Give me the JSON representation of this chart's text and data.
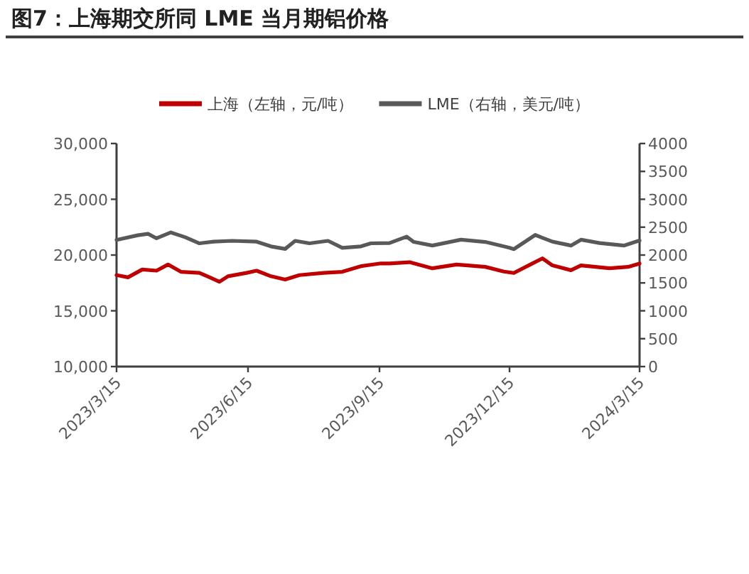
{
  "chart_data": {
    "type": "line",
    "title": "图7：上海期交所同 LME 当月期铝价格",
    "series": [
      {
        "name": "上海（左轴，元/吨）",
        "color": "#c00000",
        "x": [
          "2023-03-15",
          "2023-03-23",
          "2023-04-02",
          "2023-04-12",
          "2023-04-20",
          "2023-04-29",
          "2023-05-12",
          "2023-05-20",
          "2023-05-26",
          "2023-06-01",
          "2023-06-14",
          "2023-06-21",
          "2023-07-01",
          "2023-07-11",
          "2023-07-21",
          "2023-08-07",
          "2023-08-20",
          "2023-09-02",
          "2023-09-16",
          "2023-09-22",
          "2023-10-06",
          "2023-10-22",
          "2023-11-08",
          "2023-11-28",
          "2023-12-11",
          "2023-12-18",
          "2023-12-31",
          "2024-01-07",
          "2024-01-14",
          "2024-01-27",
          "2024-02-03",
          "2024-02-23",
          "2024-03-07",
          "2024-03-15"
        ],
        "values": [
          18200,
          18000,
          18700,
          18600,
          19150,
          18500,
          18400,
          17950,
          17600,
          18100,
          18400,
          18600,
          18100,
          17800,
          18200,
          18400,
          18500,
          19000,
          19250,
          19240,
          19360,
          18810,
          19150,
          18940,
          18520,
          18390,
          19240,
          19700,
          19070,
          18640,
          19070,
          18810,
          18940,
          19240
        ]
      },
      {
        "name": "LME（右轴，美元/吨）",
        "color": "#595959",
        "axis": "y2",
        "x": [
          "2023-03-15",
          "2023-03-30",
          "2023-04-06",
          "2023-04-12",
          "2023-04-22",
          "2023-05-02",
          "2023-05-12",
          "2023-05-22",
          "2023-06-04",
          "2023-06-21",
          "2023-07-01",
          "2023-07-11",
          "2023-07-18",
          "2023-07-28",
          "2023-08-10",
          "2023-08-20",
          "2023-09-02",
          "2023-09-09",
          "2023-09-22",
          "2023-10-04",
          "2023-10-09",
          "2023-10-22",
          "2023-11-11",
          "2023-11-28",
          "2023-12-15",
          "2023-12-18",
          "2024-01-02",
          "2024-01-14",
          "2024-01-27",
          "2024-02-03",
          "2024-02-16",
          "2024-03-04",
          "2024-03-15"
        ],
        "values": [
          2270,
          2355,
          2380,
          2300,
          2405,
          2320,
          2210,
          2240,
          2255,
          2240,
          2155,
          2110,
          2255,
          2210,
          2255,
          2130,
          2155,
          2210,
          2215,
          2330,
          2235,
          2170,
          2275,
          2235,
          2130,
          2105,
          2360,
          2240,
          2170,
          2275,
          2215,
          2170,
          2260
        ]
      }
    ],
    "xlim": [
      "2023-03-15",
      "2024-03-15"
    ],
    "xticks": [
      {
        "value": "2023-03-15",
        "label": "2023/3/15"
      },
      {
        "value": "2023-06-15",
        "label": "2023/6/15"
      },
      {
        "value": "2023-09-15",
        "label": "2023/9/15"
      },
      {
        "value": "2023-12-15",
        "label": "2023/12/15"
      },
      {
        "value": "2024-03-15",
        "label": "2024/3/15"
      }
    ],
    "ylim": [
      10000,
      30000
    ],
    "yticks": [
      {
        "value": 10000,
        "label": "10,000"
      },
      {
        "value": 15000,
        "label": "15,000"
      },
      {
        "value": 20000,
        "label": "20,000"
      },
      {
        "value": 25000,
        "label": "25,000"
      },
      {
        "value": 30000,
        "label": "30,000"
      }
    ],
    "y2lim": [
      0,
      4000
    ],
    "y2ticks": [
      0,
      500,
      1000,
      1500,
      2000,
      2500,
      3000,
      3500,
      4000
    ],
    "legend": "top",
    "grid": false
  }
}
